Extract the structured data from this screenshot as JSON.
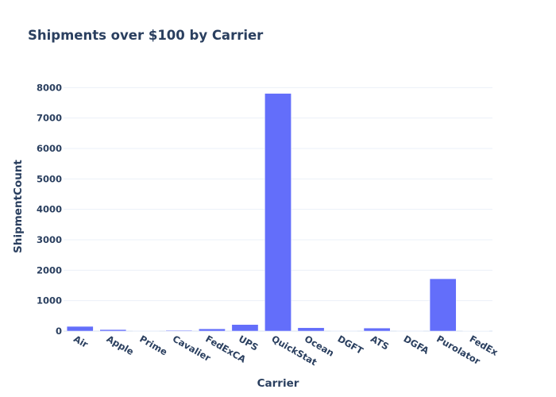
{
  "chart_data": {
    "type": "bar",
    "title": "Shipments over $100 by Carrier",
    "xlabel": "Carrier",
    "ylabel": "ShipmentCount",
    "categories": [
      "Air",
      "Apple",
      "Prime",
      "Cavalier",
      "FedExCA",
      "UPS",
      "QuickStat",
      "Ocean",
      "DGFT",
      "ATS",
      "DGFA",
      "Purolator",
      "FedEx"
    ],
    "values": [
      155,
      50,
      5,
      25,
      75,
      215,
      7810,
      110,
      5,
      100,
      5,
      1720,
      10
    ],
    "ylim": [
      0,
      8270
    ],
    "yticks": [
      0,
      1000,
      2000,
      3000,
      4000,
      5000,
      6000,
      7000,
      8000
    ],
    "grid": true,
    "bar_color": "#636efa",
    "text_color": "#2a3f5f",
    "grid_color": "#ebf0f8"
  }
}
